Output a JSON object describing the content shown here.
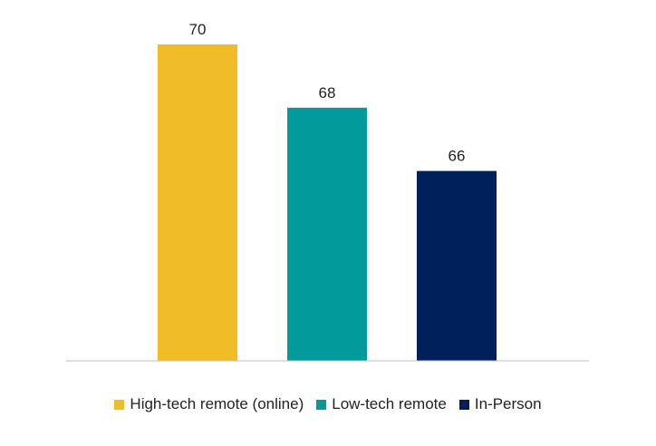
{
  "chart_data": {
    "type": "bar",
    "categories": [
      "High-tech remote (online)",
      "Low-tech remote",
      "In-Person"
    ],
    "values": [
      70,
      68,
      66
    ],
    "colors": [
      "#F0BC28",
      "#009B9A",
      "#00205B"
    ],
    "data_labels": [
      "70",
      "68",
      "66"
    ],
    "ylim": [
      60,
      71.5
    ],
    "grid": false,
    "legend_position": "bottom",
    "title": "",
    "xlabel": "",
    "ylabel": ""
  }
}
